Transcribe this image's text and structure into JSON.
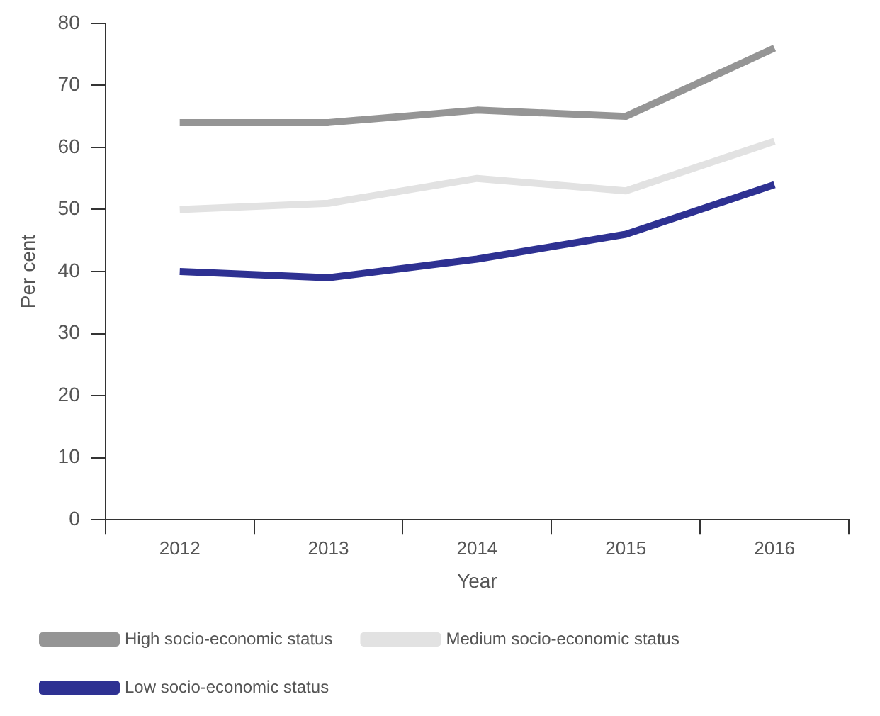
{
  "chart_data": {
    "type": "line",
    "xlabel": "Year",
    "ylabel": "Per cent",
    "categories": [
      "2012",
      "2013",
      "2014",
      "2015",
      "2016"
    ],
    "series": [
      {
        "name": "High socio-economic status",
        "color": "#959595",
        "values": [
          64,
          64,
          66,
          65,
          76
        ]
      },
      {
        "name": "Medium socio-economic status",
        "color": "#e2e2e2",
        "values": [
          50,
          51,
          55,
          53,
          61
        ]
      },
      {
        "name": "Low socio-economic status",
        "color": "#2e3192",
        "values": [
          40,
          39,
          42,
          46,
          54
        ]
      }
    ],
    "ylim": [
      0,
      80
    ],
    "yticks": [
      0,
      10,
      20,
      30,
      40,
      50,
      60,
      70,
      80
    ],
    "grid": false,
    "legend": "bottom",
    "marker": "none",
    "line_style": "solid"
  }
}
